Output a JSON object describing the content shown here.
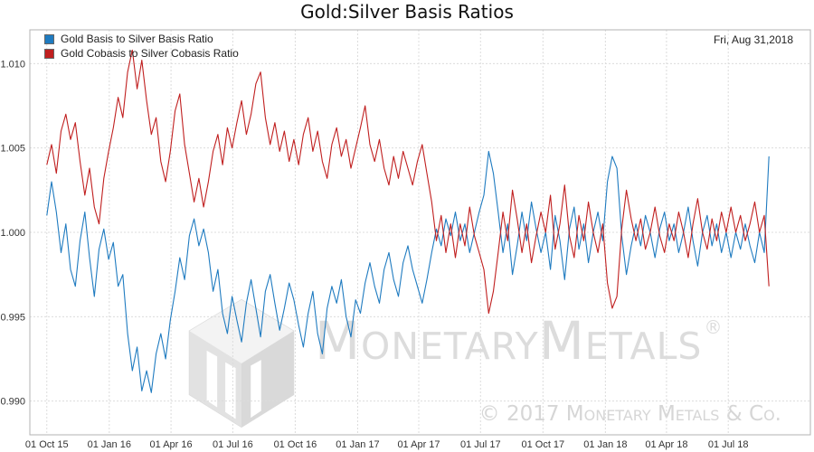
{
  "watermark": {
    "brand": "MonetaryMetals",
    "registered": "®",
    "copyright": "© 2017 Monetary Metals & Co."
  },
  "chart_data": {
    "type": "line",
    "title": "Gold:Silver Basis Ratios",
    "annotation": "Fri, Aug 31,2018",
    "xlabel": "",
    "ylabel": "",
    "x_unit": "days since 2015-10-01, one point per 7 days",
    "x_step_days": 7,
    "xlim": [
      -25,
      1125
    ],
    "ylim": [
      0.988,
      1.012
    ],
    "grid": true,
    "legend_position": "top-left",
    "y_ticks": [
      {
        "value": 1.01,
        "label": "1.010"
      },
      {
        "value": 1.005,
        "label": "1.005"
      },
      {
        "value": 1.0,
        "label": "1.000"
      },
      {
        "value": 0.995,
        "label": "0.995"
      },
      {
        "value": 0.99,
        "label": "0.990"
      }
    ],
    "x_ticks": [
      {
        "day": 0,
        "label": "01 Oct 15"
      },
      {
        "day": 92,
        "label": "01 Jan 16"
      },
      {
        "day": 183,
        "label": "01 Apr 16"
      },
      {
        "day": 274,
        "label": "01 Jul 16"
      },
      {
        "day": 366,
        "label": "01 Oct 16"
      },
      {
        "day": 458,
        "label": "01 Jan 17"
      },
      {
        "day": 548,
        "label": "01 Apr 17"
      },
      {
        "day": 639,
        "label": "01 Jul 17"
      },
      {
        "day": 731,
        "label": "01 Oct 17"
      },
      {
        "day": 823,
        "label": "01 Jan 18"
      },
      {
        "day": 913,
        "label": "01 Apr 18"
      },
      {
        "day": 1004,
        "label": "01 Jul 18"
      }
    ],
    "series": [
      {
        "name": "Gold Basis to Silver Basis Ratio",
        "color": "#1f7bc0",
        "values": [
          1.001,
          1.003,
          1.0012,
          0.9988,
          1.0005,
          0.9978,
          0.9968,
          0.9995,
          1.0012,
          0.9985,
          0.9962,
          0.999,
          1.0002,
          0.9984,
          0.9994,
          0.9968,
          0.9975,
          0.994,
          0.9918,
          0.9932,
          0.9906,
          0.9918,
          0.9905,
          0.9928,
          0.994,
          0.9925,
          0.9948,
          0.9965,
          0.9985,
          0.9972,
          0.9998,
          1.0008,
          0.9992,
          1.0002,
          0.9988,
          0.9965,
          0.9978,
          0.9952,
          0.994,
          0.9962,
          0.9948,
          0.9935,
          0.9958,
          0.9972,
          0.9955,
          0.9938,
          0.9965,
          0.9975,
          0.9958,
          0.9942,
          0.9955,
          0.997,
          0.996,
          0.9945,
          0.9932,
          0.9952,
          0.9965,
          0.994,
          0.9928,
          0.9955,
          0.9968,
          0.9958,
          0.9972,
          0.995,
          0.9938,
          0.996,
          0.9952,
          0.997,
          0.9982,
          0.9968,
          0.9958,
          0.9978,
          0.9988,
          0.9972,
          0.9962,
          0.9982,
          0.9992,
          0.9978,
          0.9968,
          0.9958,
          0.9972,
          0.9988,
          1.0002,
          0.9992,
          1.0008,
          0.9998,
          1.0012,
          0.9995,
          1.0005,
          0.9988,
          1.0,
          1.0012,
          1.0022,
          1.0048,
          1.0035,
          1.0012,
          0.9988,
          1.0005,
          0.9975,
          0.9992,
          1.0012,
          0.9995,
          1.0018,
          1.0002,
          0.9988,
          1.0,
          0.9978,
          1.001,
          0.9995,
          0.9972,
          1.0002,
          1.0015,
          0.999,
          1.0005,
          0.9982,
          1.0,
          1.0012,
          0.9995,
          1.003,
          1.0045,
          1.0038,
          0.9998,
          0.9975,
          0.9992,
          1.0005,
          0.9992,
          1.001,
          1.0,
          0.9985,
          1.0002,
          1.0012,
          0.9995,
          1.0005,
          0.9988,
          1.0,
          1.0015,
          0.9995,
          0.998,
          1.0,
          1.001,
          0.9992,
          1.0005,
          0.9988,
          1.0,
          0.9985,
          1.0,
          0.999,
          1.0005,
          0.9992,
          0.9982,
          1.0,
          0.9988,
          1.0045
        ]
      },
      {
        "name": "Gold Cobasis to Silver Cobasis Ratio",
        "color": "#c01f1f",
        "values": [
          1.004,
          1.0052,
          1.0035,
          1.006,
          1.007,
          1.0055,
          1.0065,
          1.0042,
          1.0022,
          1.0038,
          1.0015,
          1.0005,
          1.0032,
          1.0048,
          1.0062,
          1.008,
          1.0068,
          1.0095,
          1.0108,
          1.0085,
          1.0102,
          1.0078,
          1.0058,
          1.0068,
          1.0042,
          1.003,
          1.0048,
          1.0072,
          1.0082,
          1.0052,
          1.0035,
          1.0018,
          1.0032,
          1.0015,
          1.003,
          1.0048,
          1.0058,
          1.004,
          1.0062,
          1.005,
          1.0065,
          1.0078,
          1.0058,
          1.007,
          1.0088,
          1.0095,
          1.0068,
          1.0052,
          1.0065,
          1.0048,
          1.006,
          1.0042,
          1.0055,
          1.004,
          1.0058,
          1.0068,
          1.0048,
          1.006,
          1.0042,
          1.0032,
          1.0052,
          1.0062,
          1.0045,
          1.0055,
          1.0038,
          1.005,
          1.0062,
          1.0075,
          1.0052,
          1.0042,
          1.0055,
          1.0038,
          1.0028,
          1.0045,
          1.0032,
          1.0048,
          1.0038,
          1.0028,
          1.0042,
          1.0052,
          1.0035,
          1.0018,
          0.9995,
          1.001,
          0.9988,
          1.0005,
          0.9985,
          1.0005,
          0.9992,
          1.0015,
          0.9998,
          0.9988,
          0.9978,
          0.9952,
          0.9965,
          0.9988,
          1.0012,
          0.9995,
          1.0025,
          1.0008,
          0.9988,
          1.0005,
          0.9982,
          0.9998,
          1.0012,
          1.0,
          1.0022,
          0.999,
          1.0005,
          1.0028,
          0.9998,
          0.9985,
          1.001,
          0.9995,
          1.0018,
          1.0,
          0.9988,
          1.0005,
          0.997,
          0.9955,
          0.9962,
          1.0002,
          1.0025,
          1.0008,
          0.9995,
          1.0008,
          0.999,
          1.0,
          1.0015,
          0.9998,
          0.9988,
          1.0005,
          0.9995,
          1.0012,
          1.0,
          0.9985,
          1.0005,
          1.002,
          1.0,
          0.999,
          1.0008,
          0.9995,
          1.0012,
          1.0,
          1.0015,
          1.0,
          1.001,
          0.9995,
          1.0005,
          1.0018,
          1.0,
          1.001,
          0.9968
        ]
      }
    ]
  }
}
